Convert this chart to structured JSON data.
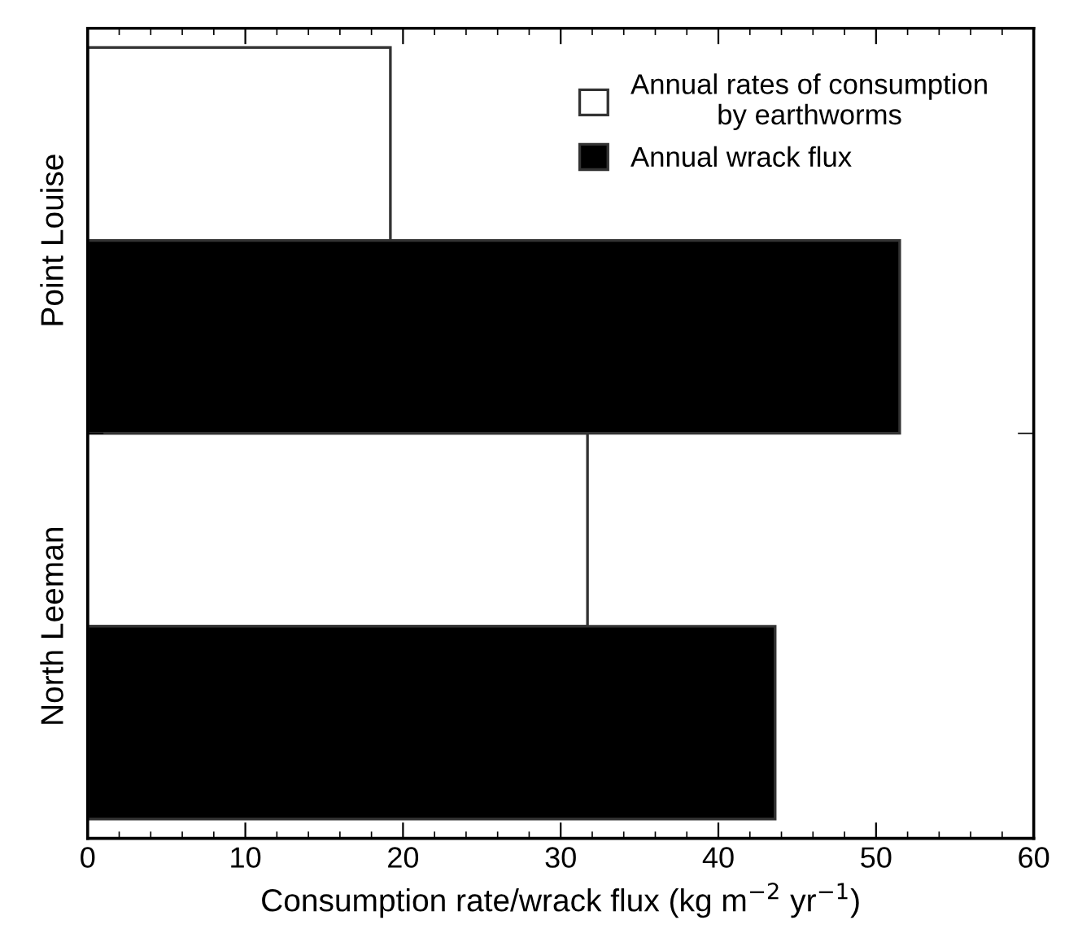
{
  "chart_data": {
    "type": "bar",
    "orientation": "horizontal",
    "categories": [
      "Point Louise",
      "North Leeman"
    ],
    "series": [
      {
        "name": "Annual rates of consumption\nby earthworms",
        "color": "#ffffff",
        "values": [
          19.2,
          31.7
        ]
      },
      {
        "name": "Annual wrack flux",
        "color": "#000000",
        "values": [
          51.5,
          43.6
        ]
      }
    ],
    "xlabel": "Consumption rate/wrack flux (kg m$^{−2}$ yr$^{−1}$)",
    "xlim": [
      0,
      60
    ],
    "xticks": [
      0,
      10,
      20,
      30,
      40,
      50,
      60
    ],
    "grid": false,
    "legend": "top right"
  }
}
